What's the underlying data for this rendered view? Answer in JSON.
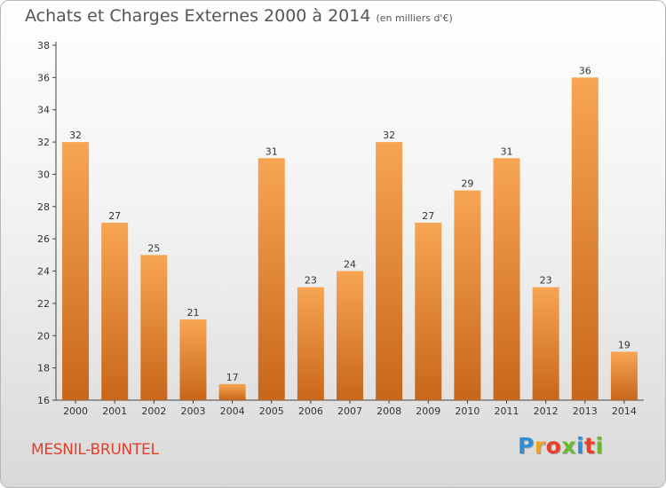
{
  "header": {
    "title": "Achats et Charges Externes 2000 à 2014",
    "subtitle": "(en milliers d'€)"
  },
  "footer": {
    "commune": "MESNIL-BRUNTEL",
    "logo_letters": [
      "P",
      "r",
      "o",
      "x",
      "i",
      "t",
      "i"
    ],
    "logo_colors": [
      "#2e8fd6",
      "#f0a020",
      "#e8402c",
      "#6bb82e",
      "#2e8fd6",
      "#e8402c",
      "#6bb82e"
    ]
  },
  "chart_data": {
    "type": "bar",
    "title": "Achats et Charges Externes 2000 à 2014",
    "subtitle": "(en milliers d'€)",
    "xlabel": "",
    "ylabel": "",
    "categories": [
      "2000",
      "2001",
      "2002",
      "2003",
      "2004",
      "2005",
      "2006",
      "2007",
      "2008",
      "2009",
      "2010",
      "2011",
      "2012",
      "2013",
      "2014"
    ],
    "values": [
      32,
      27,
      25,
      21,
      17,
      31,
      23,
      24,
      32,
      27,
      29,
      31,
      23,
      36,
      19
    ],
    "ylim": [
      16,
      38
    ],
    "yticks": [
      "16",
      "18",
      "20",
      "22",
      "24",
      "26",
      "28",
      "30",
      "32",
      "34",
      "36",
      "38"
    ],
    "grid": false,
    "legend": "none",
    "bar_color_light": "#f7a553",
    "bar_color_dark": "#c8661a"
  }
}
